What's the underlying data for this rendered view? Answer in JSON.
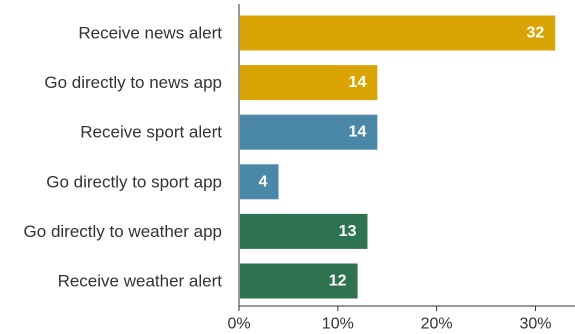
{
  "chart_data": {
    "type": "bar",
    "orientation": "horizontal",
    "title": "",
    "xlabel": "",
    "ylabel": "",
    "categories": [
      "Receive news alert",
      "Go directly to news app",
      "Receive sport alert",
      "Go directly to sport app",
      "Go directly to weather app",
      "Receive weather alert"
    ],
    "values": [
      32,
      14,
      14,
      4,
      13,
      12
    ],
    "value_labels": [
      "32",
      "14",
      "14",
      "4",
      "13",
      "12"
    ],
    "bar_colors": [
      "#d9a404",
      "#d9a404",
      "#4a88a8",
      "#4a88a8",
      "#2e7350",
      "#2e7350"
    ],
    "xlim": [
      0,
      34
    ],
    "x_ticks": [
      0,
      10,
      20,
      30
    ],
    "x_tick_labels": [
      "0%",
      "10%",
      "20%",
      "30%"
    ],
    "grid": false,
    "legend": "none"
  }
}
